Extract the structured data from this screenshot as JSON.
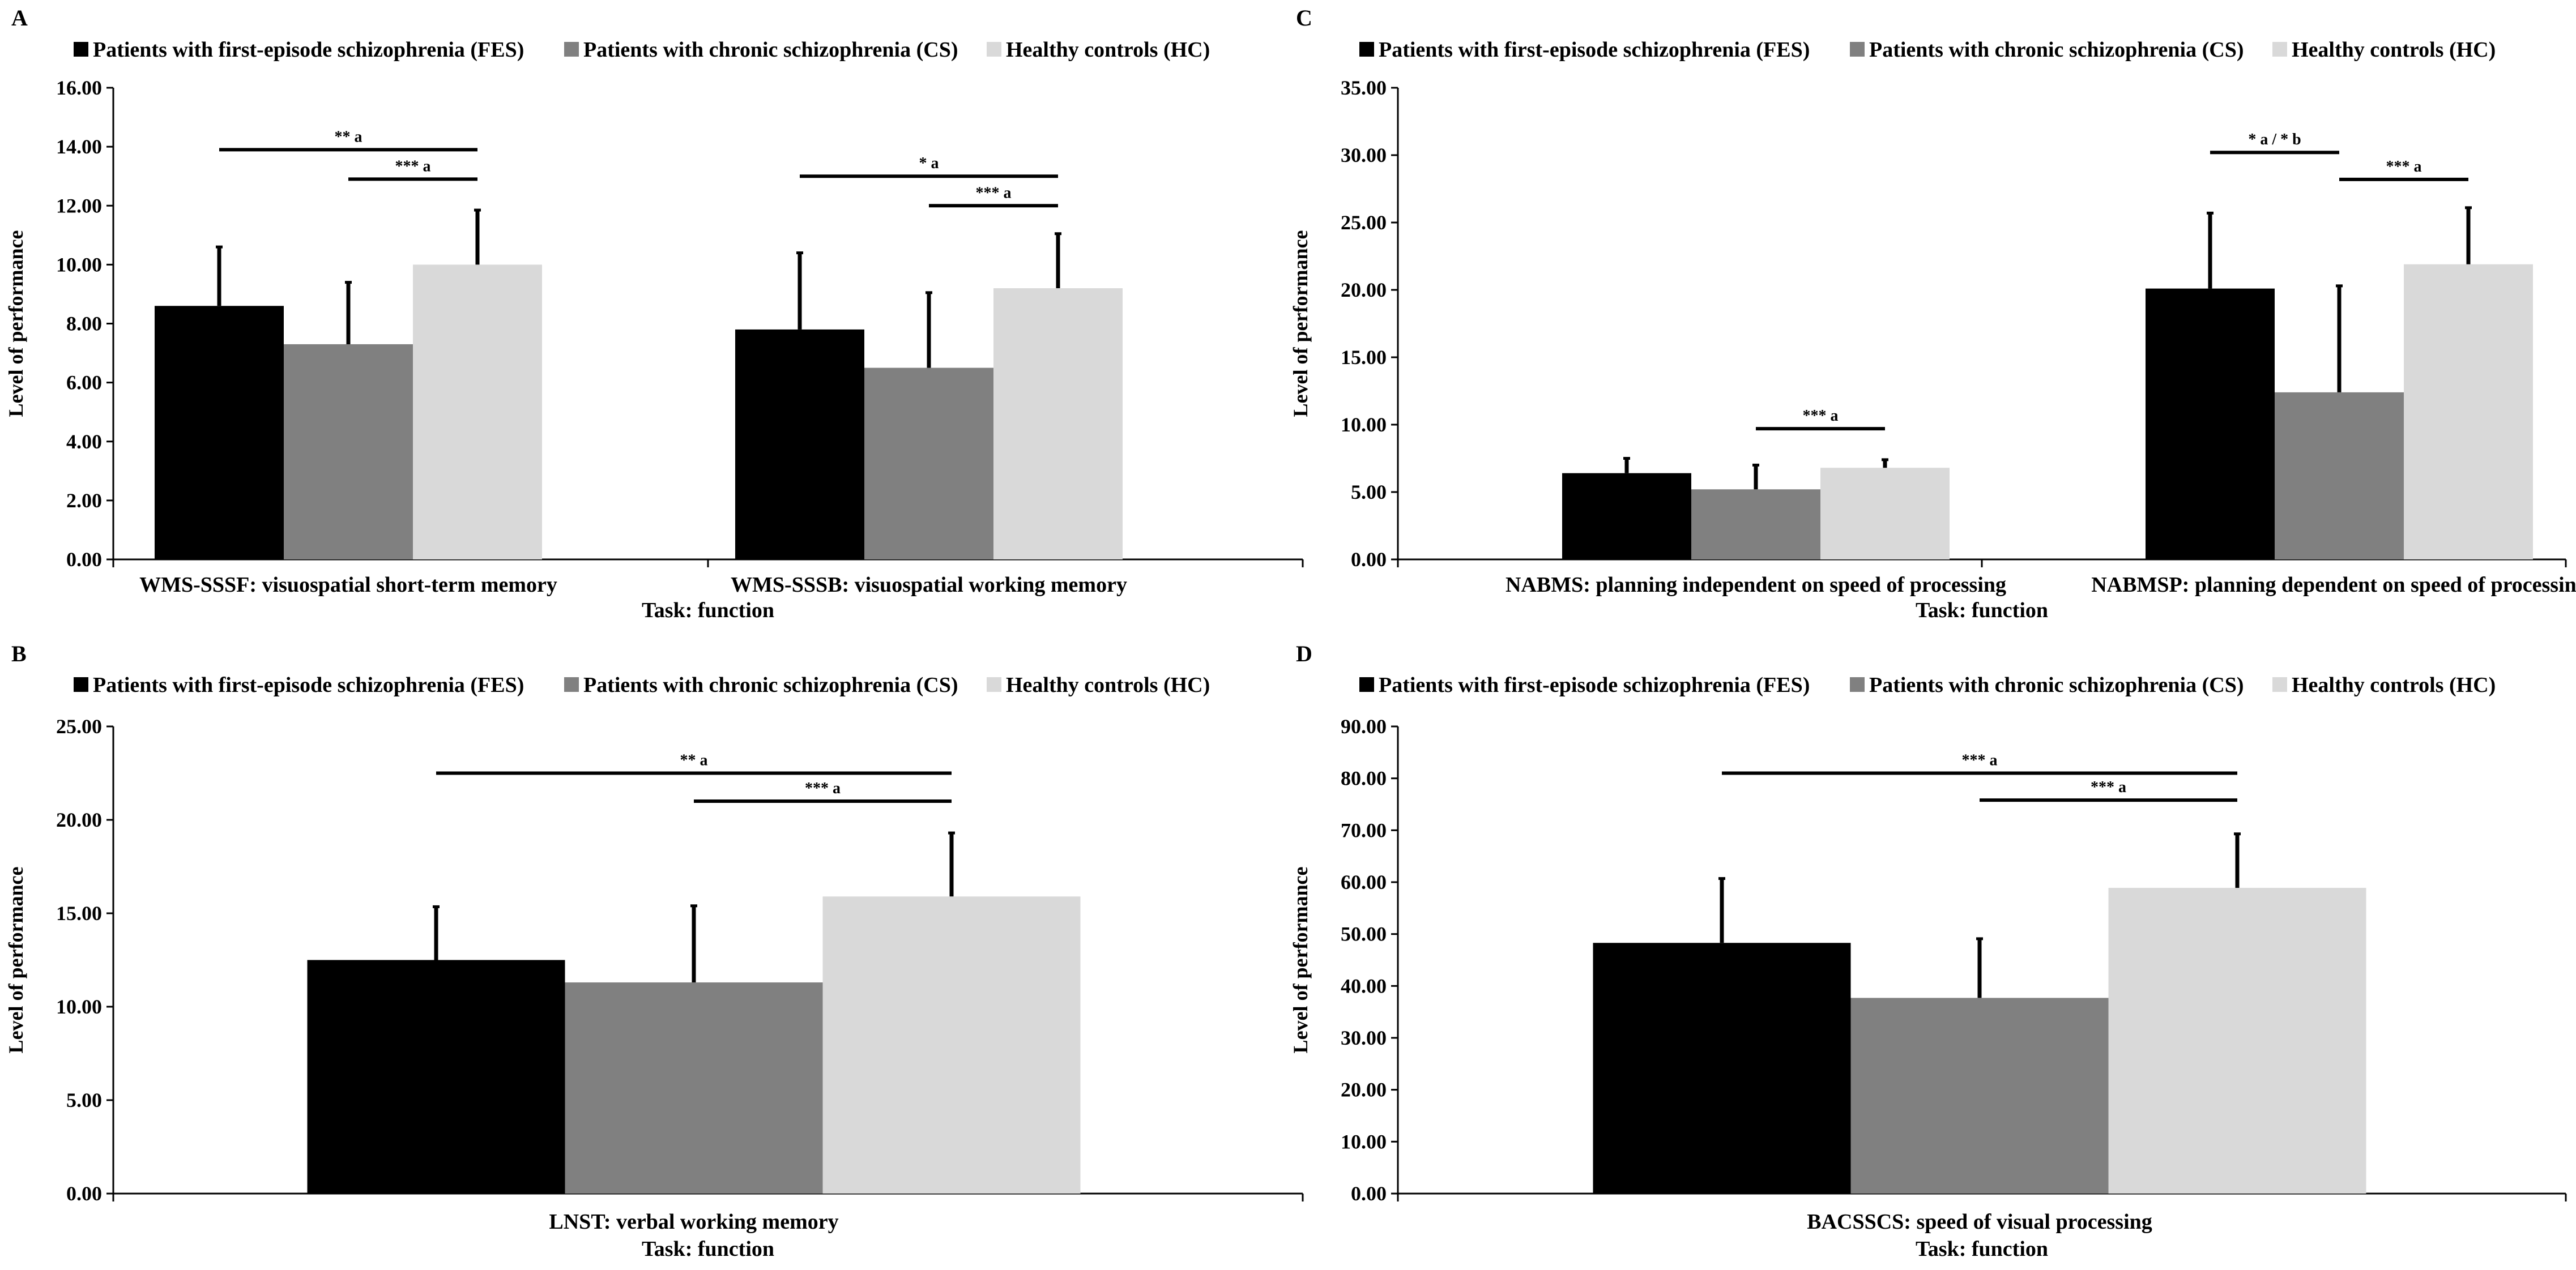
{
  "figure": {
    "legend": [
      {
        "label": "Patients with first-episode schizophrenia (FES)",
        "color": "#000000"
      },
      {
        "label": "Patients with chronic schizophrenia (CS)",
        "color": "#808080"
      },
      {
        "label": "Healthy controls (HC)",
        "color": "#d9d9d9"
      }
    ],
    "error_color": "#000000",
    "axis_color": "#000000"
  },
  "chart_data": [
    {
      "panel": "A",
      "type": "bar",
      "title": "",
      "xlabel": "Task: function",
      "ylabel": "Level of performance",
      "categories": [
        "WMS-SSSF: visuospatial short-term memory",
        "WMS-SSSB: visuospatial working memory"
      ],
      "series": [
        {
          "name": "Patients with first-episode schizophrenia (FES)",
          "values": [
            8.6,
            7.8
          ],
          "errors": [
            2.0,
            2.6
          ]
        },
        {
          "name": "Patients with chronic schizophrenia (CS)",
          "values": [
            7.3,
            6.5
          ],
          "errors": [
            2.1,
            2.55
          ]
        },
        {
          "name": "Healthy controls (HC)",
          "values": [
            10.0,
            9.2
          ],
          "errors": [
            1.85,
            1.85
          ]
        }
      ],
      "ylim": [
        0,
        16
      ],
      "yticks": [
        0,
        2,
        4,
        6,
        8,
        10,
        12,
        14,
        16
      ],
      "tick_decimals": 2,
      "significance": [
        {
          "category": 0,
          "from_series": 0,
          "to_series": 2,
          "y": 13.9,
          "label": "** a"
        },
        {
          "category": 0,
          "from_series": 1,
          "to_series": 2,
          "y": 12.9,
          "label": "*** a"
        },
        {
          "category": 1,
          "from_series": 0,
          "to_series": 2,
          "y": 13.0,
          "label": "* a"
        },
        {
          "category": 1,
          "from_series": 1,
          "to_series": 2,
          "y": 12.0,
          "label": "*** a"
        }
      ]
    },
    {
      "panel": "B",
      "type": "bar",
      "title": "",
      "xlabel": "Task: function",
      "ylabel": "Level of performance",
      "categories": [
        "LNST: verbal working memory"
      ],
      "series": [
        {
          "name": "Patients with first-episode schizophrenia (FES)",
          "values": [
            12.5
          ],
          "errors": [
            2.85
          ]
        },
        {
          "name": "Patients with chronic schizophrenia (CS)",
          "values": [
            11.3
          ],
          "errors": [
            4.1
          ]
        },
        {
          "name": "Healthy controls (HC)",
          "values": [
            15.9
          ],
          "errors": [
            3.4
          ]
        }
      ],
      "ylim": [
        0,
        25
      ],
      "yticks": [
        0,
        5,
        10,
        15,
        20,
        25
      ],
      "tick_decimals": 2,
      "significance": [
        {
          "category": 0,
          "from_series": 0,
          "to_series": 2,
          "y": 22.5,
          "label": "** a"
        },
        {
          "category": 0,
          "from_series": 1,
          "to_series": 2,
          "y": 21.0,
          "label": "*** a"
        }
      ]
    },
    {
      "panel": "C",
      "type": "bar",
      "title": "",
      "xlabel": "Task: function",
      "ylabel": "Level of performance",
      "categories": [
        "NABMS: planning independent on speed of processing",
        "NABMSP: planning dependent on speed of processing"
      ],
      "series": [
        {
          "name": "Patients with first-episode schizophrenia (FES)",
          "values": [
            6.4,
            20.1
          ],
          "errors": [
            1.1,
            5.6
          ]
        },
        {
          "name": "Patients with chronic schizophrenia (CS)",
          "values": [
            5.2,
            12.4
          ],
          "errors": [
            1.8,
            7.9
          ]
        },
        {
          "name": "Healthy controls (HC)",
          "values": [
            6.8,
            21.9
          ],
          "errors": [
            0.6,
            4.2
          ]
        }
      ],
      "ylim": [
        0,
        35
      ],
      "yticks": [
        0,
        5,
        10,
        15,
        20,
        25,
        30,
        35
      ],
      "tick_decimals": 2,
      "significance": [
        {
          "category": 0,
          "from_series": 1,
          "to_series": 2,
          "y": 9.7,
          "label": "*** a"
        },
        {
          "category": 1,
          "from_series": 0,
          "to_series": 1,
          "y": 30.2,
          "label": "* a / * b"
        },
        {
          "category": 1,
          "from_series": 1,
          "to_series": 2,
          "y": 28.2,
          "label": "*** a"
        }
      ]
    },
    {
      "panel": "D",
      "type": "bar",
      "title": "",
      "xlabel": "Task: function",
      "ylabel": "Level of performance",
      "categories": [
        "BACSSCS: speed of visual processing"
      ],
      "series": [
        {
          "name": "Patients with first-episode schizophrenia (FES)",
          "values": [
            48.3
          ],
          "errors": [
            12.4
          ]
        },
        {
          "name": "Patients with chronic schizophrenia (CS)",
          "values": [
            37.7
          ],
          "errors": [
            11.4
          ]
        },
        {
          "name": "Healthy controls (HC)",
          "values": [
            58.9
          ],
          "errors": [
            10.4
          ]
        }
      ],
      "ylim": [
        0,
        90
      ],
      "yticks": [
        0,
        10,
        20,
        30,
        40,
        50,
        60,
        70,
        80,
        90
      ],
      "tick_decimals": 2,
      "significance": [
        {
          "category": 0,
          "from_series": 0,
          "to_series": 2,
          "y": 81.0,
          "label": "*** a"
        },
        {
          "category": 0,
          "from_series": 1,
          "to_series": 2,
          "y": 75.8,
          "label": "*** a"
        }
      ]
    }
  ]
}
